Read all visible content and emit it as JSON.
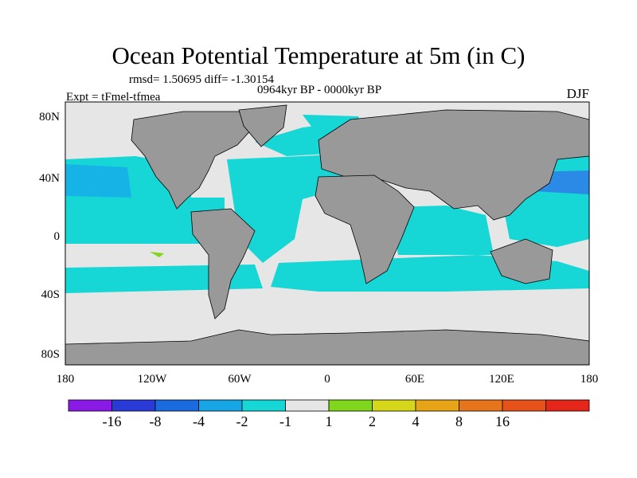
{
  "figure": {
    "title": "Ocean Potential Temperature at 5m (in C)",
    "stats": "rmsd= 1.50695 diff= -1.30154",
    "experiment": "Expt = tFmel-tfmea",
    "period": "0964kyr BP - 0000kyr BP",
    "season": "DJF"
  },
  "colors": {
    "land": "#999999",
    "neutral": "#e6e6e6",
    "cyan": "#16d6d6",
    "skyblue": "#16b4e6",
    "midblue": "#2a8ae6",
    "green": "#80d61a"
  },
  "axes": {
    "y_ticks": [
      "80N",
      "40N",
      "0",
      "40S",
      "80S"
    ],
    "x_ticks": [
      "180",
      "120W",
      "60W",
      "0",
      "60E",
      "120E",
      "180"
    ]
  },
  "colorbar": {
    "labels": [
      "-16",
      "-8",
      "-4",
      "-2",
      "-1",
      "1",
      "2",
      "4",
      "8",
      "16"
    ],
    "colors": [
      "#8c1ae6",
      "#2a3ad6",
      "#1a6ae0",
      "#16a6e6",
      "#16d6d6",
      "#e6e6e6",
      "#80d61a",
      "#d6d61a",
      "#e6a416",
      "#e6741a",
      "#e6521a",
      "#e6261a"
    ]
  }
}
